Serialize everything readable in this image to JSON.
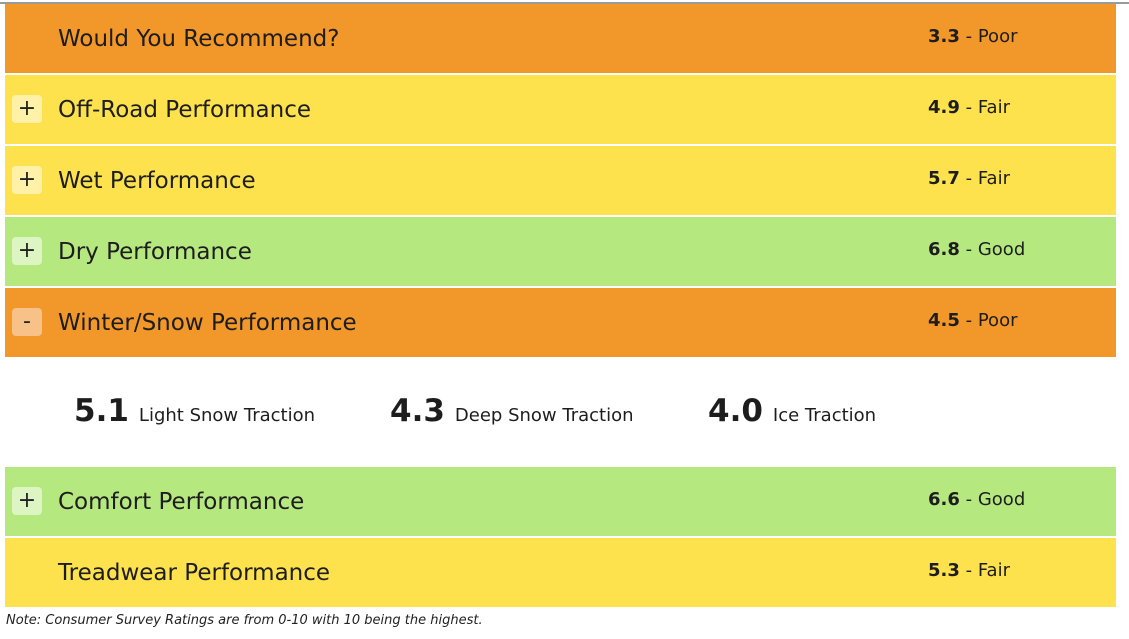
{
  "ratings": [
    {
      "label": "Would You Recommend?",
      "score": "3.3",
      "rating": "Poor"
    },
    {
      "label": "Off-Road Performance",
      "score": "4.9",
      "rating": "Fair",
      "toggle": "+"
    },
    {
      "label": "Wet Performance",
      "score": "5.7",
      "rating": "Fair",
      "toggle": "+"
    },
    {
      "label": "Dry Performance",
      "score": "6.8",
      "rating": "Good",
      "toggle": "+"
    },
    {
      "label": "Winter/Snow Performance",
      "score": "4.5",
      "rating": "Poor",
      "toggle": "-",
      "details": [
        {
          "score": "5.1",
          "label": "Light Snow Traction"
        },
        {
          "score": "4.3",
          "label": "Deep Snow Traction"
        },
        {
          "score": "4.0",
          "label": "Ice Traction"
        }
      ]
    },
    {
      "label": "Comfort Performance",
      "score": "6.6",
      "rating": "Good",
      "toggle": "+"
    },
    {
      "label": "Treadwear Performance",
      "score": "5.3",
      "rating": "Fair"
    }
  ],
  "note": "Note: Consumer Survey Ratings are from 0-10 with 10 being the highest.",
  "separator": " - "
}
